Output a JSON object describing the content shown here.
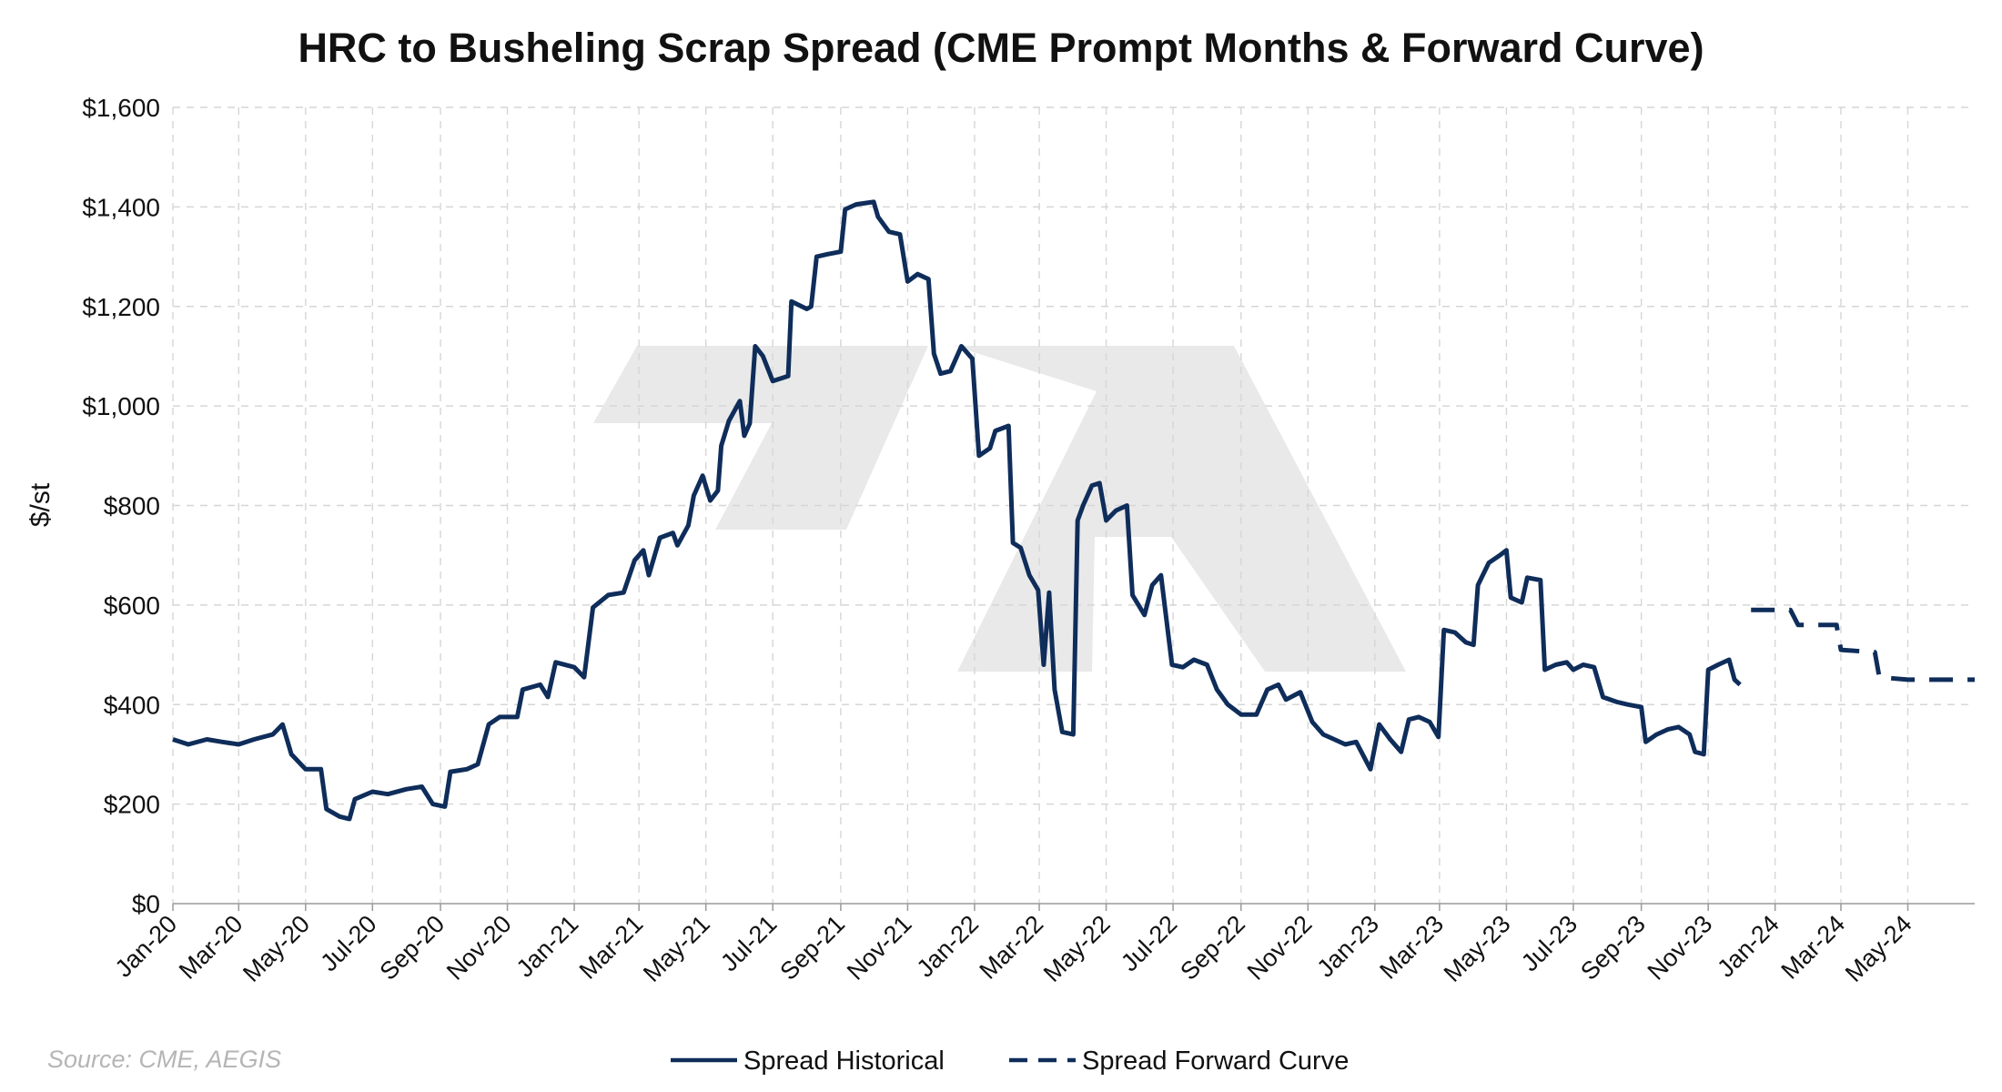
{
  "source_note": "Source: CME, AEGIS",
  "colors": {
    "series": "#0f2d5a",
    "grid": "#d6d6d6",
    "watermark": "#e9e9e9",
    "source": "#b5b5b5"
  },
  "chart_data": {
    "type": "line",
    "title": "HRC to Busheling Scrap Spread (CME Prompt Months & Forward Curve)",
    "xlabel": "",
    "ylabel": "$/st",
    "ylim": [
      0,
      1600
    ],
    "yticks": [
      0,
      200,
      400,
      600,
      800,
      1000,
      1200,
      1400,
      1600
    ],
    "ytick_labels": [
      "$0",
      "$200",
      "$400",
      "$600",
      "$800",
      "$1,000",
      "$1,200",
      "$1,400",
      "$1,600"
    ],
    "xlim": [
      "2020-01-01",
      "2024-07-01"
    ],
    "xticks": [
      "2020-01-01",
      "2020-03-01",
      "2020-05-01",
      "2020-07-01",
      "2020-09-01",
      "2020-11-01",
      "2021-01-01",
      "2021-03-01",
      "2021-05-01",
      "2021-07-01",
      "2021-09-01",
      "2021-11-01",
      "2022-01-01",
      "2022-03-01",
      "2022-05-01",
      "2022-07-01",
      "2022-09-01",
      "2022-11-01",
      "2023-01-01",
      "2023-03-01",
      "2023-05-01",
      "2023-07-01",
      "2023-09-01",
      "2023-11-01",
      "2024-01-01",
      "2024-03-01",
      "2024-05-01"
    ],
    "xtick_labels": [
      "Jan-20",
      "Mar-20",
      "May-20",
      "Jul-20",
      "Sep-20",
      "Nov-20",
      "Jan-21",
      "Mar-21",
      "May-21",
      "Jul-21",
      "Sep-21",
      "Nov-21",
      "Jan-22",
      "Mar-22",
      "May-22",
      "Jul-22",
      "Sep-22",
      "Nov-22",
      "Jan-23",
      "Mar-23",
      "May-23",
      "Jul-23",
      "Sep-23",
      "Nov-23",
      "Jan-24",
      "Mar-24",
      "May-24"
    ],
    "grid": true,
    "legend_position": "bottom-center",
    "series": [
      {
        "name": "Spread Historical",
        "style": "solid",
        "points": [
          [
            "2020-01-01",
            330
          ],
          [
            "2020-01-15",
            320
          ],
          [
            "2020-02-01",
            330
          ],
          [
            "2020-02-15",
            325
          ],
          [
            "2020-03-01",
            320
          ],
          [
            "2020-03-15",
            330
          ],
          [
            "2020-04-01",
            340
          ],
          [
            "2020-04-10",
            360
          ],
          [
            "2020-04-18",
            300
          ],
          [
            "2020-05-01",
            270
          ],
          [
            "2020-05-15",
            270
          ],
          [
            "2020-05-20",
            190
          ],
          [
            "2020-06-01",
            175
          ],
          [
            "2020-06-10",
            170
          ],
          [
            "2020-06-15",
            210
          ],
          [
            "2020-07-01",
            225
          ],
          [
            "2020-07-15",
            220
          ],
          [
            "2020-08-01",
            230
          ],
          [
            "2020-08-15",
            235
          ],
          [
            "2020-08-25",
            200
          ],
          [
            "2020-09-05",
            195
          ],
          [
            "2020-09-10",
            265
          ],
          [
            "2020-09-25",
            270
          ],
          [
            "2020-10-05",
            280
          ],
          [
            "2020-10-15",
            360
          ],
          [
            "2020-10-25",
            375
          ],
          [
            "2020-11-10",
            375
          ],
          [
            "2020-11-15",
            430
          ],
          [
            "2020-12-01",
            440
          ],
          [
            "2020-12-08",
            415
          ],
          [
            "2020-12-15",
            485
          ],
          [
            "2021-01-01",
            475
          ],
          [
            "2021-01-10",
            455
          ],
          [
            "2021-01-18",
            595
          ],
          [
            "2021-02-01",
            620
          ],
          [
            "2021-02-15",
            625
          ],
          [
            "2021-02-25",
            690
          ],
          [
            "2021-03-05",
            710
          ],
          [
            "2021-03-10",
            660
          ],
          [
            "2021-03-20",
            735
          ],
          [
            "2021-04-01",
            745
          ],
          [
            "2021-04-05",
            720
          ],
          [
            "2021-04-15",
            760
          ],
          [
            "2021-04-20",
            820
          ],
          [
            "2021-04-28",
            860
          ],
          [
            "2021-05-05",
            810
          ],
          [
            "2021-05-12",
            830
          ],
          [
            "2021-05-15",
            920
          ],
          [
            "2021-05-22",
            970
          ],
          [
            "2021-06-01",
            1010
          ],
          [
            "2021-06-05",
            940
          ],
          [
            "2021-06-10",
            965
          ],
          [
            "2021-06-15",
            1120
          ],
          [
            "2021-06-22",
            1100
          ],
          [
            "2021-07-01",
            1050
          ],
          [
            "2021-07-15",
            1060
          ],
          [
            "2021-07-18",
            1210
          ],
          [
            "2021-08-01",
            1195
          ],
          [
            "2021-08-05",
            1200
          ],
          [
            "2021-08-10",
            1300
          ],
          [
            "2021-08-20",
            1305
          ],
          [
            "2021-09-01",
            1310
          ],
          [
            "2021-09-05",
            1395
          ],
          [
            "2021-09-15",
            1405
          ],
          [
            "2021-10-01",
            1410
          ],
          [
            "2021-10-05",
            1380
          ],
          [
            "2021-10-15",
            1350
          ],
          [
            "2021-10-25",
            1345
          ],
          [
            "2021-11-01",
            1250
          ],
          [
            "2021-11-10",
            1265
          ],
          [
            "2021-11-20",
            1255
          ],
          [
            "2021-11-25",
            1105
          ],
          [
            "2021-12-01",
            1065
          ],
          [
            "2021-12-10",
            1070
          ],
          [
            "2021-12-20",
            1120
          ],
          [
            "2021-12-30",
            1095
          ],
          [
            "2022-01-05",
            900
          ],
          [
            "2022-01-15",
            915
          ],
          [
            "2022-01-20",
            950
          ],
          [
            "2022-02-01",
            960
          ],
          [
            "2022-02-05",
            725
          ],
          [
            "2022-02-12",
            715
          ],
          [
            "2022-02-20",
            660
          ],
          [
            "2022-02-28",
            630
          ],
          [
            "2022-03-05",
            480
          ],
          [
            "2022-03-10",
            625
          ],
          [
            "2022-03-15",
            430
          ],
          [
            "2022-03-22",
            345
          ],
          [
            "2022-04-01",
            340
          ],
          [
            "2022-04-05",
            770
          ],
          [
            "2022-04-10",
            800
          ],
          [
            "2022-04-18",
            840
          ],
          [
            "2022-04-25",
            845
          ],
          [
            "2022-05-01",
            770
          ],
          [
            "2022-05-10",
            790
          ],
          [
            "2022-05-20",
            800
          ],
          [
            "2022-05-25",
            620
          ],
          [
            "2022-06-05",
            580
          ],
          [
            "2022-06-12",
            640
          ],
          [
            "2022-06-20",
            660
          ],
          [
            "2022-06-30",
            480
          ],
          [
            "2022-07-10",
            475
          ],
          [
            "2022-07-20",
            490
          ],
          [
            "2022-08-01",
            480
          ],
          [
            "2022-08-10",
            430
          ],
          [
            "2022-08-20",
            400
          ],
          [
            "2022-09-01",
            380
          ],
          [
            "2022-09-15",
            380
          ],
          [
            "2022-09-25",
            430
          ],
          [
            "2022-10-05",
            440
          ],
          [
            "2022-10-12",
            410
          ],
          [
            "2022-10-25",
            425
          ],
          [
            "2022-11-05",
            365
          ],
          [
            "2022-11-15",
            340
          ],
          [
            "2022-11-25",
            330
          ],
          [
            "2022-12-05",
            320
          ],
          [
            "2022-12-15",
            325
          ],
          [
            "2022-12-28",
            270
          ],
          [
            "2023-01-05",
            360
          ],
          [
            "2023-01-15",
            330
          ],
          [
            "2023-01-25",
            305
          ],
          [
            "2023-02-01",
            370
          ],
          [
            "2023-02-10",
            375
          ],
          [
            "2023-02-20",
            365
          ],
          [
            "2023-02-28",
            335
          ],
          [
            "2023-03-05",
            550
          ],
          [
            "2023-03-15",
            545
          ],
          [
            "2023-03-25",
            525
          ],
          [
            "2023-04-01",
            520
          ],
          [
            "2023-04-05",
            640
          ],
          [
            "2023-04-15",
            685
          ],
          [
            "2023-04-25",
            700
          ],
          [
            "2023-05-01",
            710
          ],
          [
            "2023-05-05",
            615
          ],
          [
            "2023-05-15",
            605
          ],
          [
            "2023-05-20",
            655
          ],
          [
            "2023-06-01",
            650
          ],
          [
            "2023-06-05",
            470
          ],
          [
            "2023-06-15",
            480
          ],
          [
            "2023-06-25",
            485
          ],
          [
            "2023-07-01",
            470
          ],
          [
            "2023-07-10",
            480
          ],
          [
            "2023-07-20",
            475
          ],
          [
            "2023-07-28",
            415
          ],
          [
            "2023-08-10",
            405
          ],
          [
            "2023-08-20",
            400
          ],
          [
            "2023-09-01",
            395
          ],
          [
            "2023-09-05",
            325
          ],
          [
            "2023-09-15",
            340
          ],
          [
            "2023-09-25",
            350
          ],
          [
            "2023-10-05",
            355
          ],
          [
            "2023-10-15",
            340
          ],
          [
            "2023-10-20",
            305
          ],
          [
            "2023-10-28",
            300
          ],
          [
            "2023-11-01",
            470
          ],
          [
            "2023-11-10",
            480
          ],
          [
            "2023-11-20",
            490
          ],
          [
            "2023-11-25",
            450
          ],
          [
            "2023-11-30",
            440
          ]
        ]
      },
      {
        "name": "Spread Forward Curve",
        "style": "dashed",
        "points": [
          [
            "2023-12-10",
            590
          ],
          [
            "2024-01-15",
            590
          ],
          [
            "2024-01-22",
            560
          ],
          [
            "2024-02-26",
            560
          ],
          [
            "2024-03-01",
            510
          ],
          [
            "2024-04-01",
            505
          ],
          [
            "2024-04-05",
            455
          ],
          [
            "2024-05-01",
            450
          ],
          [
            "2024-07-01",
            450
          ]
        ]
      }
    ]
  }
}
